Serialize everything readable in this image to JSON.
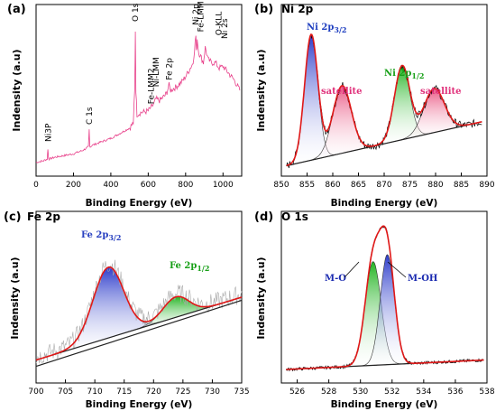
{
  "chart_data": [
    {
      "id": "a",
      "type": "line",
      "panel_label": "(a)",
      "title": "",
      "xlabel": "Binding Energy (eV)",
      "ylabel": "Indensity (a.u)",
      "xlim": [
        0,
        1100
      ],
      "ylim": [
        0,
        1
      ],
      "x_ticks": [
        0,
        200,
        400,
        600,
        800,
        1000
      ],
      "x_tick_labels": [
        "0",
        "200",
        "400",
        "600",
        "800",
        "1000"
      ],
      "color": "#e8408a",
      "series": [
        {
          "x": [
            0,
            40,
            60,
            63,
            66,
            70,
            100,
            150,
            200,
            250,
            280,
            284,
            287,
            290,
            300,
            350,
            400,
            450,
            500,
            520,
            528,
            531,
            534,
            540,
            560,
            600,
            630,
            642,
            660,
            690,
            700,
            711,
            720,
            750,
            780,
            800,
            820,
            840,
            855,
            858,
            862,
            870,
            880,
            895,
            905,
            920,
            940,
            960,
            980,
            1000,
            1030,
            1060,
            1090
          ],
          "y": [
            0.08,
            0.09,
            0.1,
            0.16,
            0.11,
            0.1,
            0.11,
            0.12,
            0.13,
            0.15,
            0.17,
            0.27,
            0.18,
            0.17,
            0.18,
            0.2,
            0.22,
            0.25,
            0.28,
            0.31,
            0.5,
            0.85,
            0.5,
            0.36,
            0.37,
            0.38,
            0.42,
            0.45,
            0.44,
            0.47,
            0.49,
            0.53,
            0.5,
            0.52,
            0.55,
            0.58,
            0.62,
            0.66,
            0.82,
            0.72,
            0.8,
            0.72,
            0.7,
            0.66,
            0.75,
            0.68,
            0.66,
            0.66,
            0.63,
            0.64,
            0.6,
            0.56,
            0.5
          ]
        }
      ],
      "annotations": [
        {
          "text": "Ni3P",
          "x": 66
        },
        {
          "text": "C 1s",
          "x": 285
        },
        {
          "text": "Fe-LMM2",
          "x": 615
        },
        {
          "text": "Ni-LMM",
          "x": 642
        },
        {
          "text": "Fe 2p",
          "x": 711
        },
        {
          "text": "O 1s",
          "x": 531
        },
        {
          "text": "Ni 2p",
          "x": 855
        },
        {
          "text": "Fe-LMM",
          "x": 880
        },
        {
          "text": "O-KLL",
          "x": 978
        },
        {
          "text": "Ni 2s",
          "x": 1008
        }
      ]
    },
    {
      "id": "b",
      "type": "line",
      "panel_label": "(b)",
      "title": "Ni 2p",
      "xlabel": "Binding Energy (eV)",
      "ylabel": "Indensity (a.u)",
      "xlim": [
        850,
        890
      ],
      "ylim": [
        0,
        1
      ],
      "x_ticks": [
        850,
        855,
        860,
        865,
        870,
        875,
        880,
        885,
        890
      ],
      "x_tick_labels": [
        "850",
        "855",
        "860",
        "865",
        "870",
        "875",
        "880",
        "885",
        "890"
      ],
      "background": {
        "x": [
          851,
          889
        ],
        "y": [
          0.02,
          0.3
        ]
      },
      "components": [
        {
          "label": "Ni 2p3/2",
          "center": 855.8,
          "width": 1.3,
          "height": 0.8,
          "color": "#2c3ec2"
        },
        {
          "label": "satellite",
          "center": 861.8,
          "width": 1.8,
          "height": 0.43,
          "color": "#e8527a"
        },
        {
          "label": "Ni 2p1/2",
          "center": 873.5,
          "width": 1.5,
          "height": 0.47,
          "color": "#1ea81e"
        },
        {
          "label": "satellite",
          "center": 879.7,
          "width": 2.0,
          "height": 0.28,
          "color": "#e8527a"
        }
      ],
      "labels": [
        {
          "text": "Ni 2p3/2",
          "color": "#2040c0"
        },
        {
          "text": "satellite",
          "color": "#e0307a"
        },
        {
          "text": "Ni 2p1/2",
          "color": "#18a018"
        },
        {
          "text": "satellite",
          "color": "#e0307a"
        }
      ]
    },
    {
      "id": "c",
      "type": "line",
      "panel_label": "(c)",
      "title": "Fe 2p",
      "xlabel": "Binding Energy (eV)",
      "ylabel": "Indensity (a.u)",
      "xlim": [
        700,
        735
      ],
      "ylim": [
        0,
        1
      ],
      "x_ticks": [
        700,
        705,
        710,
        715,
        720,
        725,
        730,
        735
      ],
      "x_tick_labels": [
        "700",
        "705",
        "710",
        "715",
        "720",
        "725",
        "730",
        "735"
      ],
      "background": {
        "x": [
          700,
          735
        ],
        "y": [
          0.1,
          0.5
        ]
      },
      "components": [
        {
          "label": "Fe 2p3/2",
          "center": 712.3,
          "width": 2.6,
          "height": 0.45,
          "color": "#3a3fd0"
        },
        {
          "label": "Fe 2p1/2",
          "center": 723.8,
          "width": 2.2,
          "height": 0.13,
          "color": "#1eb41e"
        }
      ],
      "labels": [
        {
          "text": "Fe 2p3/2",
          "color": "#2840c0"
        },
        {
          "text": "Fe 2p1/2",
          "color": "#18a018"
        }
      ]
    },
    {
      "id": "d",
      "type": "line",
      "panel_label": "(d)",
      "title": "O 1s",
      "xlabel": "Binding Energy (eV)",
      "ylabel": "Indensity (a.u)",
      "xlim": [
        525,
        538
      ],
      "ylim": [
        0,
        1
      ],
      "x_ticks": [
        526,
        528,
        530,
        532,
        534,
        536,
        538
      ],
      "x_tick_labels": [
        "526",
        "528",
        "530",
        "532",
        "534",
        "536",
        "538"
      ],
      "background": {
        "x": [
          525.3,
          537.8
        ],
        "y": [
          0.04,
          0.1
        ]
      },
      "components": [
        {
          "label": "M-O",
          "center": 530.8,
          "width": 0.5,
          "height": 0.66,
          "color": "#1eb41e"
        },
        {
          "label": "M-OH",
          "center": 531.7,
          "width": 0.45,
          "height": 0.7,
          "color": "#2c3ec2"
        }
      ],
      "labels": [
        {
          "text": "M-O",
          "color": "#1a2ab0"
        },
        {
          "text": "M-OH",
          "color": "#1a2ab0"
        }
      ]
    }
  ]
}
